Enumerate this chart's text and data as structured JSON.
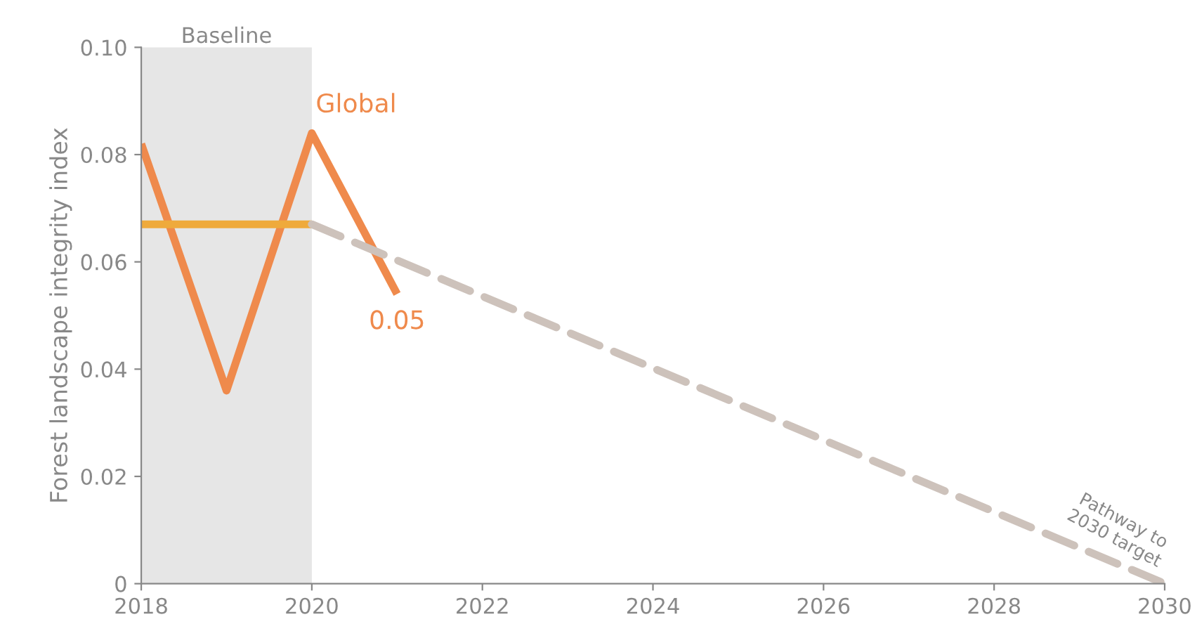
{
  "chart_data": {
    "type": "line",
    "ylabel": "Forest landscape integrity index",
    "series": [
      {
        "name": "Global",
        "color": "#ef8a4c",
        "x": [
          2018,
          2019,
          2020,
          2021
        ],
        "values": [
          0.082,
          0.036,
          0.084,
          0.054
        ],
        "value_labels": [
          null,
          null,
          null,
          "0.05"
        ]
      },
      {
        "color": "#efaa3c",
        "x": [
          2018,
          2020
        ],
        "values": [
          0.067,
          0.067
        ]
      },
      {
        "color": "#cdc2bb",
        "x": [
          2020,
          2030
        ],
        "values": [
          0.067,
          0
        ],
        "line_style": "dashed"
      }
    ],
    "xlim": [
      2018,
      2030
    ],
    "xticks": [
      2018,
      2020,
      2022,
      2024,
      2026,
      2028,
      2030
    ],
    "ylim": [
      0,
      0.1
    ],
    "yticks": [
      0,
      0.02,
      0.04,
      0.06,
      0.08,
      {
        "value": 0.1,
        "label": "0.10"
      }
    ],
    "bands": [
      {
        "axis": "x",
        "from": 2018,
        "to": 2020,
        "label": "Baseline",
        "color": "#e6e6e6"
      }
    ],
    "annotations": [
      "Pathway to\n2030 target"
    ],
    "grid": false,
    "legend": false,
    "marker": "none",
    "line_style": "solid"
  }
}
